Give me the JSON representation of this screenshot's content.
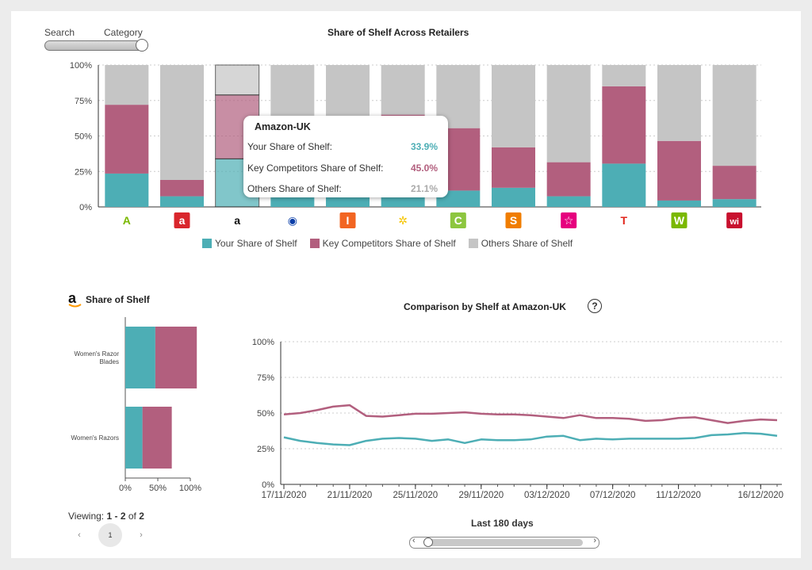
{
  "toggle": {
    "left_label": "Search",
    "right_label": "Category",
    "selected": "Category"
  },
  "main_chart": {
    "title": "Share of Shelf Across Retailers",
    "legend": [
      "Your Share of Shelf",
      "Key Competitors Share of Shelf",
      "Others Share of Shelf"
    ],
    "colors": {
      "yours": "#4daeb5",
      "competitors": "#b25f7e",
      "others": "#c5c5c5"
    }
  },
  "tooltip": {
    "title": "Amazon-UK",
    "rows": [
      {
        "label": "Your Share of Shelf:",
        "value": "33.9%",
        "color": "#4daeb5"
      },
      {
        "label": "Key Competitors Share of Shelf:",
        "value": "45.0%",
        "color": "#b25f7e"
      },
      {
        "label": "Others Share of Shelf:",
        "value": "21.1%",
        "color": "#999999"
      }
    ]
  },
  "retailer_icons": [
    {
      "name": "asda-icon",
      "glyph": "A",
      "bg": "#ffffff",
      "fg": "#7ab800"
    },
    {
      "name": "amazon-fresh-icon",
      "glyph": "a",
      "bg": "#d9262c",
      "fg": "#ffffff"
    },
    {
      "name": "amazon-icon",
      "glyph": "a",
      "bg": "#ffffff",
      "fg": "#111111"
    },
    {
      "name": "boots-icon",
      "glyph": "◉",
      "bg": "#ffffff",
      "fg": "#0a3ea8"
    },
    {
      "name": "iceland-icon",
      "glyph": "I",
      "bg": "#f26522",
      "fg": "#ffffff"
    },
    {
      "name": "morrisons-icon",
      "glyph": "✲",
      "bg": "#ffffff",
      "fg": "#f5c400"
    },
    {
      "name": "ocado-icon",
      "glyph": "C",
      "bg": "#8dc63f",
      "fg": "#ffffff"
    },
    {
      "name": "sainsburys-icon",
      "glyph": "S",
      "bg": "#f07d00",
      "fg": "#ffffff"
    },
    {
      "name": "superdrug-icon",
      "glyph": "☆",
      "bg": "#e6007e",
      "fg": "#ffffff"
    },
    {
      "name": "tesco-icon",
      "glyph": "T",
      "bg": "#ffffff",
      "fg": "#e1251b"
    },
    {
      "name": "waitrose-icon",
      "glyph": "W",
      "bg": "#7ab800",
      "fg": "#ffffff"
    },
    {
      "name": "wilko-icon",
      "glyph": "wi",
      "bg": "#c8102e",
      "fg": "#ffffff"
    }
  ],
  "shelf_panel": {
    "title": "Share of Shelf",
    "viewing_prefix": "Viewing: ",
    "viewing_range": "1 - 2",
    "viewing_of": " of ",
    "viewing_total": "2",
    "prev": "‹",
    "page": "1",
    "next": "›"
  },
  "comparison": {
    "title": "Comparison by Shelf at Amazon-UK",
    "range_label": "Last 180 days",
    "help_glyph": "?"
  },
  "chart_data": [
    {
      "type": "bar",
      "title": "Share of Shelf Across Retailers",
      "stacked": true,
      "categories": [
        "Asda",
        "Amazon Fresh",
        "Amazon-UK",
        "Boots",
        "Iceland",
        "Morrisons",
        "Ocado",
        "Sainsbury's",
        "Superdrug",
        "Tesco",
        "Waitrose",
        "Wilko"
      ],
      "ylim": [
        0,
        100
      ],
      "yticks": [
        "0%",
        "25%",
        "50%",
        "75%",
        "100%"
      ],
      "grid": true,
      "legend_position": "bottom",
      "highlighted_category": "Amazon-UK",
      "series": [
        {
          "name": "Your Share of Shelf",
          "values": [
            23.5,
            7.5,
            33.9,
            10,
            10,
            10,
            11.5,
            13.5,
            7.5,
            30.5,
            4.5,
            5.5
          ]
        },
        {
          "name": "Key Competitors Share of Shelf",
          "values": [
            48.5,
            11.5,
            45.0,
            45,
            45,
            55,
            44,
            28.5,
            24,
            54.5,
            42,
            23.5
          ]
        },
        {
          "name": "Others Share of Shelf",
          "values": [
            28,
            81,
            21.1,
            45,
            45,
            35,
            44.5,
            58,
            68.5,
            15,
            53.5,
            71
          ]
        }
      ]
    },
    {
      "type": "bar",
      "title": "Share of Shelf",
      "orientation": "horizontal",
      "stacked": true,
      "categories": [
        "Women's Razor Blades",
        "Women's Razors"
      ],
      "xlim": [
        0,
        100
      ],
      "xticks": [
        "0%",
        "50%",
        "100%"
      ],
      "series": [
        {
          "name": "Your Share of Shelf",
          "values": [
            42,
            24
          ]
        },
        {
          "name": "Key Competitors Share of Shelf",
          "values": [
            58,
            41
          ]
        }
      ]
    },
    {
      "type": "line",
      "title": "Comparison by Shelf at Amazon-UK",
      "ylim": [
        0,
        100
      ],
      "yticks": [
        "0%",
        "25%",
        "50%",
        "75%",
        "100%"
      ],
      "xticks": [
        "17/11/2020",
        "21/11/2020",
        "25/11/2020",
        "29/11/2020",
        "03/12/2020",
        "07/12/2020",
        "11/12/2020",
        "16/12/2020"
      ],
      "x": [
        "17/11/2020",
        "18/11/2020",
        "19/11/2020",
        "20/11/2020",
        "21/11/2020",
        "22/11/2020",
        "23/11/2020",
        "24/11/2020",
        "25/11/2020",
        "26/11/2020",
        "27/11/2020",
        "28/11/2020",
        "29/11/2020",
        "30/11/2020",
        "01/12/2020",
        "02/12/2020",
        "03/12/2020",
        "04/12/2020",
        "05/12/2020",
        "06/12/2020",
        "07/12/2020",
        "08/12/2020",
        "09/12/2020",
        "10/12/2020",
        "11/12/2020",
        "12/12/2020",
        "13/12/2020",
        "14/12/2020",
        "15/12/2020",
        "16/12/2020",
        "17/12/2020"
      ],
      "grid": true,
      "series": [
        {
          "name": "Key Competitors Share of Shelf",
          "color": "#b25f7e",
          "values": [
            49,
            50,
            52,
            54.5,
            55.5,
            48,
            47.5,
            48.5,
            49.5,
            49.5,
            50,
            50.5,
            49.5,
            49,
            49,
            48.5,
            47.5,
            46.5,
            48.5,
            46.5,
            46.5,
            46,
            44.5,
            45,
            46.5,
            47,
            45,
            43,
            44.5,
            45.5,
            45
          ]
        },
        {
          "name": "Your Share of Shelf",
          "color": "#4daeb5",
          "values": [
            33,
            30.5,
            29,
            28,
            27.5,
            30.5,
            32,
            32.5,
            32,
            30.5,
            31.5,
            29,
            31.5,
            31,
            31,
            31.5,
            33.5,
            34,
            31,
            32,
            31.5,
            32,
            32,
            32,
            32,
            32.5,
            34.5,
            35,
            36,
            35.5,
            34
          ]
        }
      ]
    }
  ]
}
